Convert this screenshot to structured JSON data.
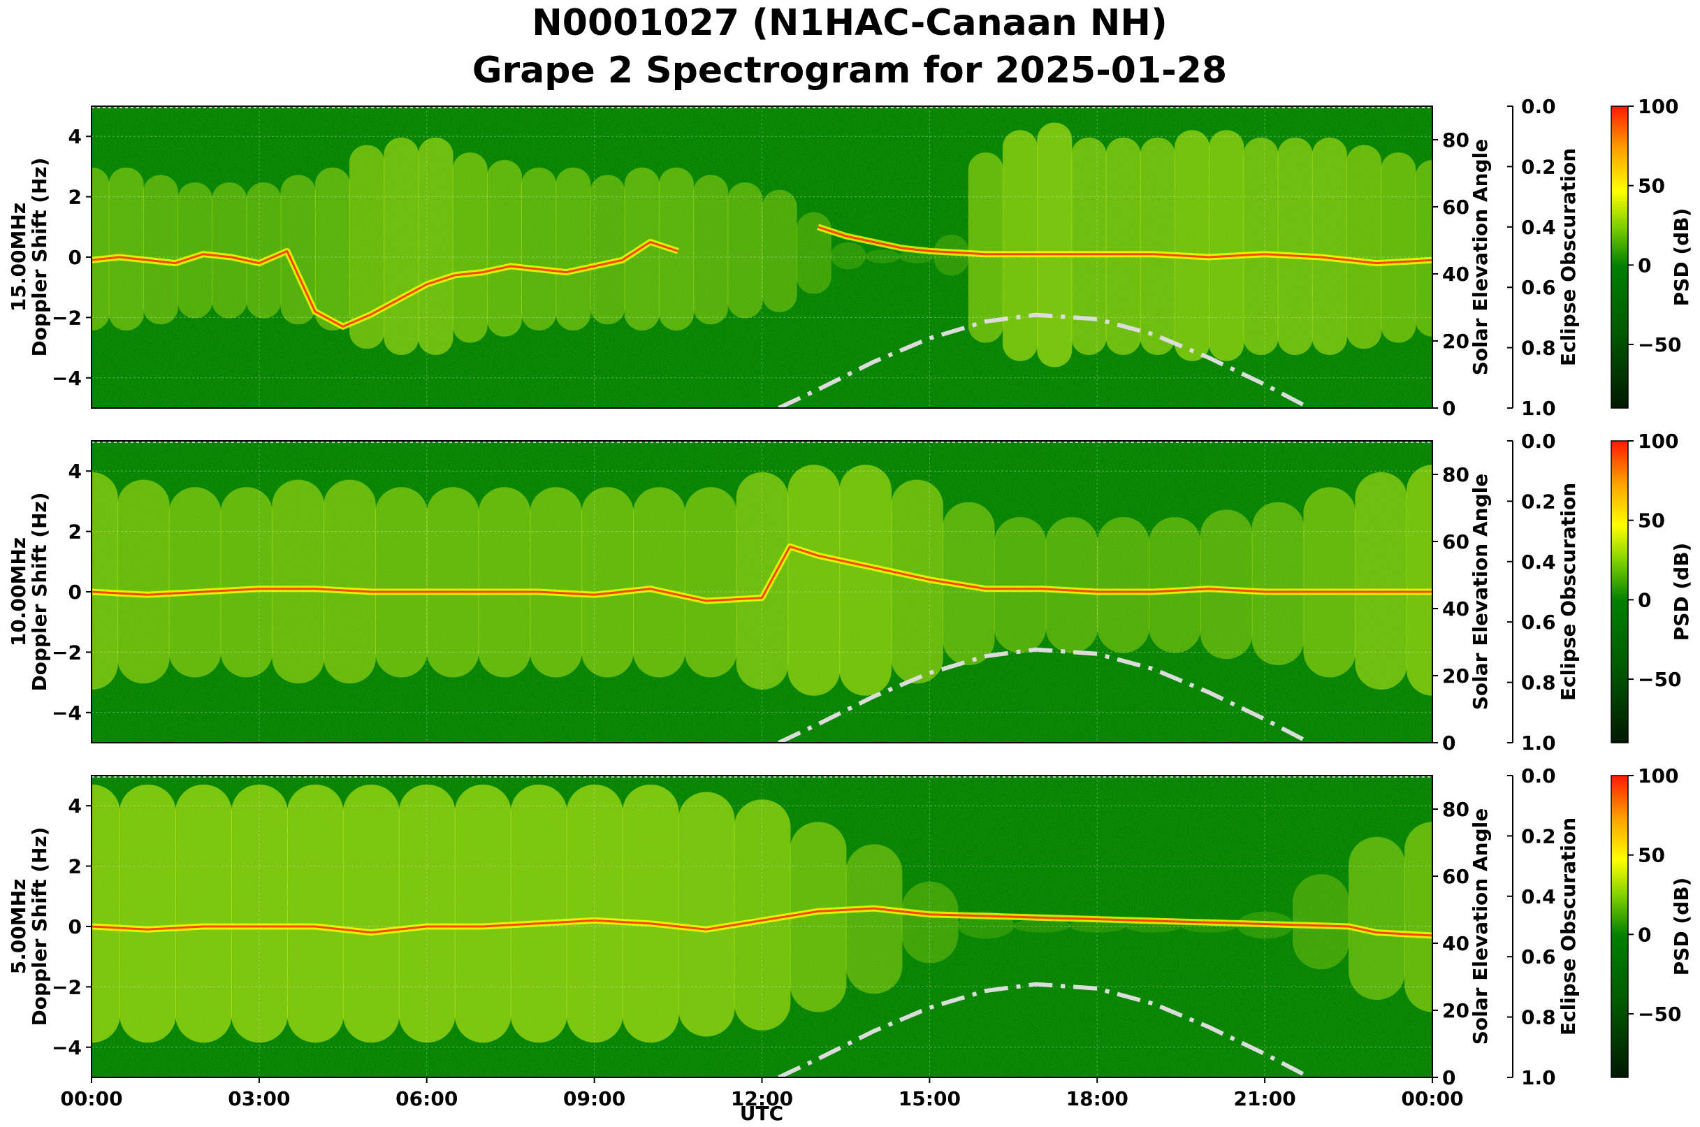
{
  "title_line1": "N0001027 (N1HAC-Canaan NH)",
  "title_line2": "Grape 2 Spectrogram for 2025-01-28",
  "colors": {
    "background": "#008000",
    "signal_low": "#b4e614",
    "signal_mid": "#ffff00",
    "signal_high": "#ff2800",
    "elevation_curve": "#dcdcdc"
  },
  "chart_data": {
    "type": "heatmap",
    "shared_x": {
      "label": "UTC",
      "ticks": [
        "00:00",
        "03:00",
        "06:00",
        "09:00",
        "12:00",
        "15:00",
        "18:00",
        "21:00",
        "00:00"
      ],
      "range_hours": [
        0,
        24
      ]
    },
    "solar_elevation": {
      "label": "Solar Elevation Angle",
      "ylim": [
        0,
        90
      ],
      "ticks": [
        "0",
        "20",
        "40",
        "60",
        "80"
      ],
      "style": "dash-dot",
      "hours": [
        12.3,
        13,
        14,
        15,
        16,
        16.9,
        18,
        19,
        20,
        21,
        21.8
      ],
      "values": [
        0,
        5.5,
        13.8,
        20.8,
        25.8,
        27.8,
        26.5,
        22.0,
        15.0,
        7.0,
        0
      ]
    },
    "eclipse": {
      "label": "Eclipse Obscuration",
      "ylim": [
        1.0,
        0.0
      ],
      "ticks": [
        "0.0",
        "0.2",
        "0.4",
        "0.6",
        "0.8",
        "1.0"
      ]
    },
    "colorbar": {
      "label": "PSD (dB)",
      "range": [
        -90,
        100
      ],
      "ticks": [
        "100",
        "50",
        "0",
        "−50"
      ]
    },
    "panels": [
      {
        "freq": "15.00MHz",
        "ylabel": "Doppler Shift (Hz)",
        "ylim": [
          -5,
          5
        ],
        "yticks": [
          "4",
          "2",
          "0",
          "−2",
          "−4"
        ],
        "trace_hours": [
          0,
          0.5,
          1,
          1.5,
          2,
          2.5,
          3,
          3.5,
          4,
          4.5,
          5,
          5.5,
          6,
          6.5,
          7,
          7.5,
          8,
          8.5,
          9,
          9.5,
          10,
          10.5,
          11,
          11.5,
          12,
          12.5,
          13,
          13.5,
          14,
          14.5,
          15,
          16,
          17,
          18,
          19,
          20,
          21,
          22,
          23,
          24
        ],
        "trace_hz": [
          -0.1,
          0,
          -0.1,
          -0.2,
          0.1,
          0,
          -0.2,
          0.2,
          -1.8,
          -2.3,
          -1.9,
          -1.4,
          -0.9,
          -0.6,
          -0.5,
          -0.3,
          -0.4,
          -0.5,
          -0.3,
          -0.1,
          0.5,
          0.2,
          null,
          null,
          null,
          null,
          1.0,
          0.7,
          0.5,
          0.3,
          0.2,
          0.1,
          0.1,
          0.1,
          0.1,
          0.0,
          0.1,
          0.0,
          -0.2,
          -0.1
        ],
        "activity": [
          0.6,
          0.6,
          0.55,
          0.5,
          0.5,
          0.5,
          0.55,
          0.6,
          0.75,
          0.8,
          0.8,
          0.7,
          0.65,
          0.6,
          0.6,
          0.55,
          0.6,
          0.6,
          0.55,
          0.5,
          0.45,
          0.3,
          0.1,
          0.05,
          0.05,
          0.15,
          0.7,
          0.85,
          0.9,
          0.8,
          0.8,
          0.8,
          0.85,
          0.85,
          0.8,
          0.8,
          0.8,
          0.75,
          0.7,
          0.65
        ]
      },
      {
        "freq": "10.00MHz",
        "ylabel": "Doppler Shift (Hz)",
        "ylim": [
          -5,
          5
        ],
        "yticks": [
          "4",
          "2",
          "0",
          "−2",
          "−4"
        ],
        "trace_hours": [
          0,
          1,
          2,
          3,
          4,
          5,
          6,
          7,
          8,
          9,
          10,
          11,
          12,
          12.5,
          13,
          13.5,
          14,
          15,
          16,
          17,
          18,
          19,
          20,
          21,
          22,
          23,
          24
        ],
        "trace_hz": [
          0.0,
          -0.1,
          0.0,
          0.1,
          0.1,
          0.0,
          0.0,
          0.0,
          0.0,
          -0.1,
          0.1,
          -0.3,
          -0.2,
          1.5,
          1.2,
          1.0,
          0.8,
          0.4,
          0.1,
          0.1,
          0.0,
          0.0,
          0.1,
          0.0,
          0.0,
          0.0,
          0.0
        ],
        "activity": [
          0.8,
          0.75,
          0.7,
          0.7,
          0.75,
          0.75,
          0.7,
          0.7,
          0.7,
          0.7,
          0.7,
          0.7,
          0.7,
          0.8,
          0.85,
          0.85,
          0.75,
          0.6,
          0.5,
          0.5,
          0.5,
          0.5,
          0.55,
          0.6,
          0.7,
          0.8,
          0.85
        ]
      },
      {
        "freq": "5.00MHz",
        "ylabel": "Doppler Shift (Hz)",
        "ylim": [
          -5,
          5
        ],
        "yticks": [
          "4",
          "2",
          "0",
          "−2",
          "−4"
        ],
        "trace_hours": [
          0,
          1,
          2,
          3,
          4,
          5,
          6,
          7,
          8,
          9,
          10,
          11,
          12,
          13,
          14,
          15,
          22.5,
          23,
          24
        ],
        "trace_hz": [
          0.0,
          -0.1,
          0.0,
          0.0,
          0.0,
          -0.2,
          0.0,
          0.0,
          0.1,
          0.2,
          0.1,
          -0.1,
          0.2,
          0.5,
          0.6,
          0.4,
          0.0,
          -0.2,
          -0.3
        ],
        "activity": [
          0.95,
          0.95,
          0.95,
          0.95,
          0.95,
          0.95,
          0.95,
          0.95,
          0.95,
          0.95,
          0.95,
          0.9,
          0.85,
          0.7,
          0.55,
          0.3,
          0.1,
          0.05,
          0.05,
          0.05,
          0.05,
          0.1,
          0.35,
          0.6,
          0.7
        ]
      }
    ]
  }
}
